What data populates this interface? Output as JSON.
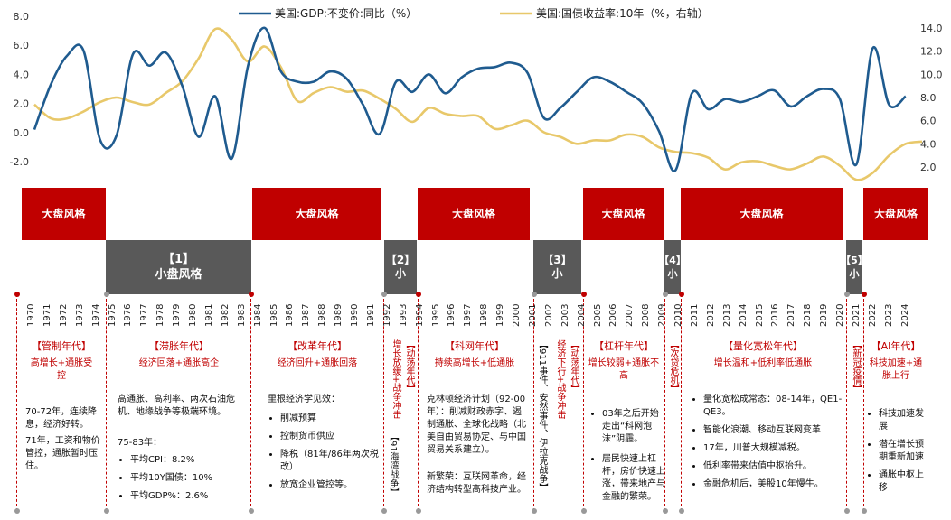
{
  "chart_data": {
    "type": "line",
    "x": [
      1970,
      1971,
      1972,
      1973,
      1974,
      1975,
      1976,
      1977,
      1978,
      1979,
      1980,
      1981,
      1982,
      1983,
      1984,
      1985,
      1986,
      1987,
      1988,
      1989,
      1990,
      1991,
      1992,
      1993,
      1994,
      1995,
      1996,
      1997,
      1998,
      1999,
      2000,
      2001,
      2002,
      2003,
      2004,
      2005,
      2006,
      2007,
      2008,
      2009,
      2010,
      2011,
      2012,
      2013,
      2014,
      2015,
      2016,
      2017,
      2018,
      2019,
      2020,
      2021,
      2022,
      2023,
      2024
    ],
    "series": [
      {
        "name": "美国:GDP:不变价:同比（%）",
        "axis": "left",
        "color": "#1F5B8F",
        "values": [
          0.2,
          3.3,
          5.3,
          5.6,
          -0.5,
          -0.2,
          5.4,
          4.6,
          5.5,
          3.2,
          -0.3,
          2.5,
          -1.8,
          4.6,
          7.2,
          4.2,
          3.5,
          3.5,
          4.2,
          3.7,
          1.9,
          -0.1,
          3.5,
          2.8,
          4.0,
          2.7,
          3.8,
          4.4,
          4.5,
          4.8,
          4.1,
          1.0,
          1.7,
          2.8,
          3.8,
          3.5,
          2.8,
          2.0,
          0.1,
          -2.6,
          2.7,
          1.6,
          2.3,
          2.1,
          2.5,
          2.9,
          1.8,
          2.5,
          3.0,
          2.3,
          -2.2,
          5.8,
          1.9,
          2.5,
          null
        ]
      },
      {
        "name": "美国:国债收益率:10年（%，右轴）",
        "axis": "right",
        "color": "#E8C86A",
        "values": [
          7.4,
          6.2,
          6.2,
          6.8,
          7.6,
          8.0,
          7.6,
          7.4,
          8.4,
          9.4,
          11.4,
          13.9,
          13.0,
          11.1,
          12.4,
          10.6,
          7.7,
          8.4,
          8.9,
          8.5,
          8.6,
          7.9,
          7.0,
          5.9,
          7.1,
          6.6,
          6.4,
          6.4,
          5.3,
          5.6,
          6.0,
          5.0,
          4.6,
          4.0,
          4.3,
          4.3,
          4.8,
          4.6,
          3.7,
          3.3,
          3.2,
          2.8,
          1.8,
          2.4,
          2.5,
          2.1,
          1.8,
          2.3,
          2.9,
          2.1,
          0.9,
          1.5,
          3.0,
          4.0,
          4.2
        ]
      }
    ],
    "yleft": [
      -2.0,
      8.0
    ],
    "yright": [
      2.0,
      14.0
    ],
    "left_ticks": [
      "8.0",
      "6.0",
      "4.0",
      "2.0",
      "0.0",
      "-2.0"
    ],
    "right_ticks": [
      "14.0",
      "12.0",
      "10.0",
      "8.0",
      "6.0",
      "4.0",
      "2.0"
    ]
  },
  "bands": [
    {
      "text": "大盘风格",
      "style": "red"
    },
    {
      "text": "【1】\n小盘风格",
      "style": "gray"
    },
    {
      "text": "大盘风格",
      "style": "red"
    },
    {
      "text": "【2】\n小",
      "style": "gray"
    },
    {
      "text": "大盘风格",
      "style": "red"
    },
    {
      "text": "【3】\n小",
      "style": "gray"
    },
    {
      "text": "大盘风格",
      "style": "red"
    },
    {
      "text": "【4】\n小",
      "style": "gray"
    },
    {
      "text": "大盘风格",
      "style": "red"
    },
    {
      "text": "【5】\n小",
      "style": "gray"
    },
    {
      "text": "大盘风格",
      "style": "red"
    }
  ],
  "eras": {
    "e1": {
      "title": "【管制年代】",
      "sub": "高增长+通胀受\n控",
      "body": [
        "70-72年，连续降息，经济好转。",
        "71年，工资和物价管控，通胀暂时压住。"
      ]
    },
    "e2": {
      "title": "【滞胀年代】",
      "sub": "经济回落+通胀高企",
      "body": "高通胀、高利率、两次石油危机、地缘战争等极端环境。",
      "head": "75-83年：",
      "items": [
        "平均CPI：8.2%",
        "平均10Y国债：10%",
        "平均GDP%：2.6%"
      ]
    },
    "e3": {
      "title": "【改革年代】",
      "sub": "经济回升+通胀回落",
      "head": "里根经济学见效：",
      "items": [
        "削减预算",
        "控制货币供应",
        "降税（81年/86年两次税改）",
        "放宽企业管控等。"
      ]
    },
    "e4": {
      "v1": "增长放缓+战争冲击",
      "v2": "【动荡年代】",
      "v3": "【91海湾战争】"
    },
    "e5": {
      "title": "【科网年代】",
      "sub": "持续高增长+低通胀",
      "body1": "克林顿经济计划（92-00年）：削减财政赤字、遏制通胀、全球化战略（北美自由贸易协定、与中国贸易关系建立）。",
      "body2": "新繁荣：互联网革命，经济结构转型高科技产业。"
    },
    "e6": {
      "v1": "【911事件、安然事件、伊拉克战争】",
      "v2": "经济下行+战争冲击",
      "v3": "【动荡年代】"
    },
    "e7": {
      "title": "【杠杆年代】",
      "sub": "增长较弱+通胀不\n高",
      "items": [
        "03年之后开始走出“科网泡沫”阴霾。",
        "居民快速上杠杆，房价快速上涨，带来地产与金融的繁荣。"
      ]
    },
    "e8": {
      "v1": "【次贷危机】"
    },
    "e9": {
      "title": "【量化宽松年代】",
      "sub": "增长温和+低利率低通胀",
      "items": [
        "量化宽松成常态：08-14年，QE1-QE3。",
        "智能化浪潮、移动互联网变革",
        "17年，川普大规模减税。",
        "低利率带来估值中枢抬升。",
        "金融危机后，美股10年慢牛。"
      ]
    },
    "e10": {
      "v1": "【新冠疫情】"
    },
    "e11": {
      "title": "【AI年代】",
      "sub": "科技加速+通\n胀上行",
      "items": [
        "科技加速发展",
        "潜在增长预期重新加速",
        "通胀中枢上移"
      ]
    }
  }
}
